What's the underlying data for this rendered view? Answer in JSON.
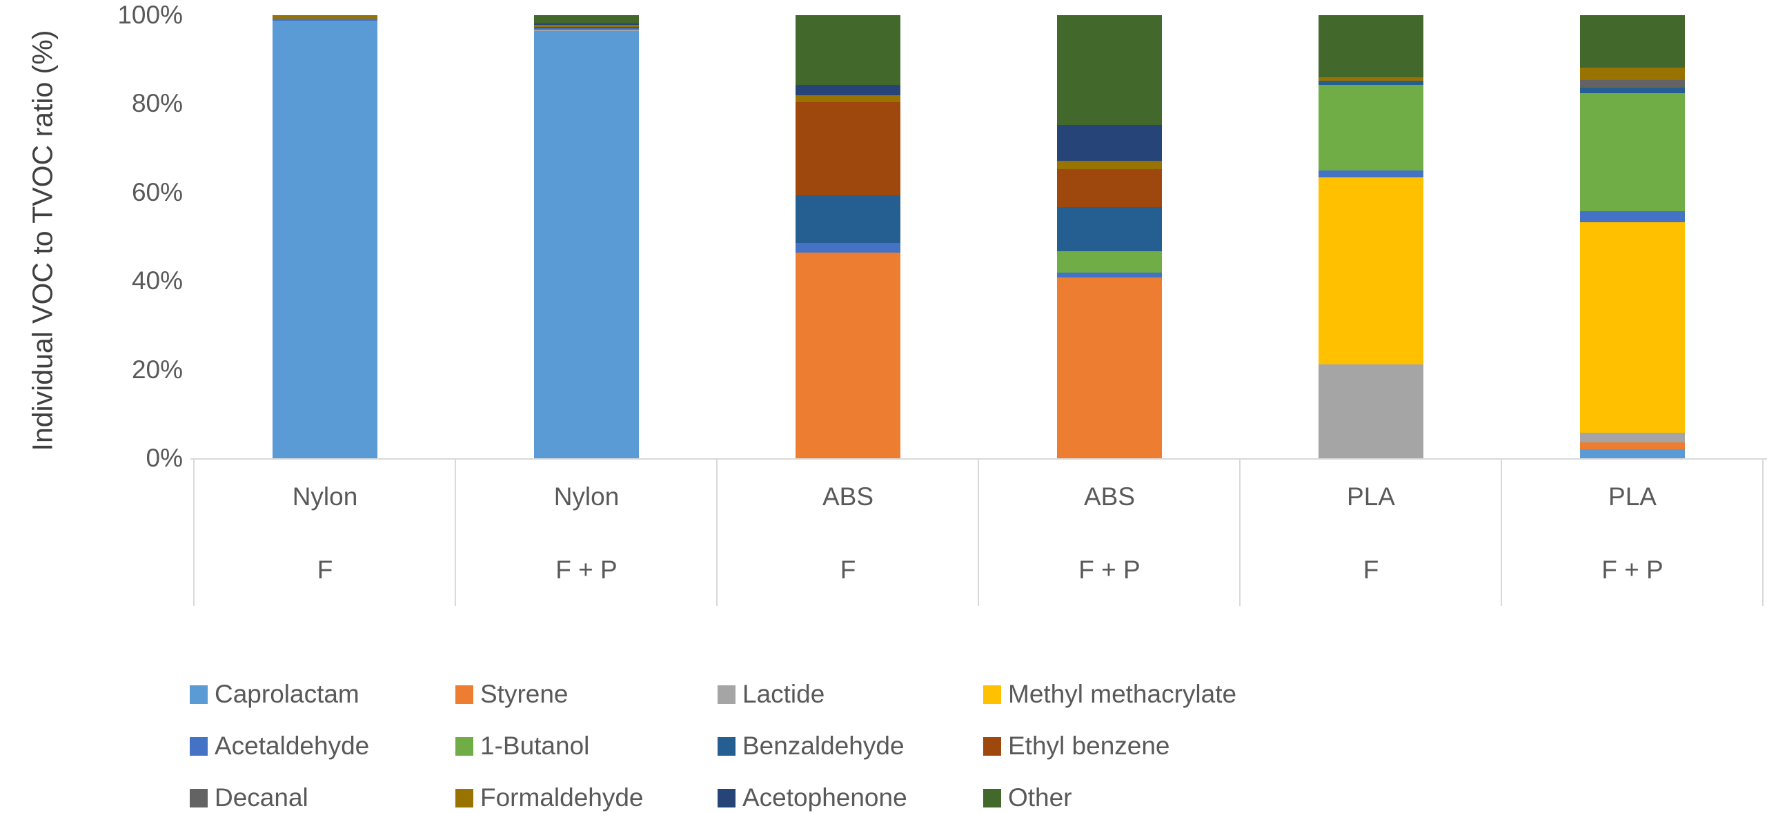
{
  "chart_data": {
    "type": "bar",
    "stacked": true,
    "title": "",
    "ylabel": "Individual VOC to TVOC ratio (%)",
    "xlabel": "",
    "ylim": [
      0,
      100
    ],
    "y_ticks": [
      "0%",
      "20%",
      "40%",
      "60%",
      "80%",
      "100%"
    ],
    "grid": false,
    "legend_position": "bottom",
    "legend_columns": 4,
    "categories": [
      {
        "material": "Nylon",
        "condition": "F"
      },
      {
        "material": "Nylon",
        "condition": "F + P"
      },
      {
        "material": "ABS",
        "condition": "F"
      },
      {
        "material": "ABS",
        "condition": "F + P"
      },
      {
        "material": "PLA",
        "condition": "F"
      },
      {
        "material": "PLA",
        "condition": "F + P"
      }
    ],
    "series": [
      {
        "name": "Caprolactam",
        "color": "#5B9BD5",
        "values": [
          98.8,
          96.4,
          0,
          0,
          0,
          2.0
        ]
      },
      {
        "name": "Styrene",
        "color": "#ED7D31",
        "values": [
          0,
          0,
          46.4,
          40.8,
          0,
          1.6
        ]
      },
      {
        "name": "Lactide",
        "color": "#A5A5A5",
        "values": [
          0,
          0.3,
          0,
          0,
          21.2,
          2.2
        ]
      },
      {
        "name": "Methyl methacrylate",
        "color": "#FFC000",
        "values": [
          0,
          0,
          0,
          0,
          42.2,
          47.5
        ]
      },
      {
        "name": "Acetaldehyde",
        "color": "#4472C4",
        "values": [
          0.5,
          0.3,
          2.2,
          1.1,
          1.6,
          2.4
        ]
      },
      {
        "name": "1-Butanol",
        "color": "#70AD47",
        "values": [
          0,
          0,
          0,
          4.8,
          19.3,
          26.7
        ]
      },
      {
        "name": "Benzaldehyde",
        "color": "#255E91",
        "values": [
          0,
          0.4,
          10.8,
          10.0,
          0.9,
          1.2
        ]
      },
      {
        "name": "Ethyl benzene",
        "color": "#9E480E",
        "values": [
          0,
          0,
          21.0,
          8.5,
          0,
          0
        ]
      },
      {
        "name": "Decanal",
        "color": "#636363",
        "values": [
          0,
          0,
          0,
          0,
          0,
          1.7
        ]
      },
      {
        "name": "Formaldehyde",
        "color": "#997300",
        "values": [
          0.7,
          0.4,
          1.6,
          1.9,
          0.8,
          2.8
        ]
      },
      {
        "name": "Acetophenone",
        "color": "#264478",
        "values": [
          0,
          0.3,
          2.3,
          8.2,
          0,
          0
        ]
      },
      {
        "name": "Other",
        "color": "#43682B",
        "values": [
          0,
          1.9,
          15.7,
          24.7,
          14.0,
          11.9
        ]
      }
    ]
  },
  "axis": {
    "y_title": "Individual VOC to TVOC ratio (%)"
  }
}
